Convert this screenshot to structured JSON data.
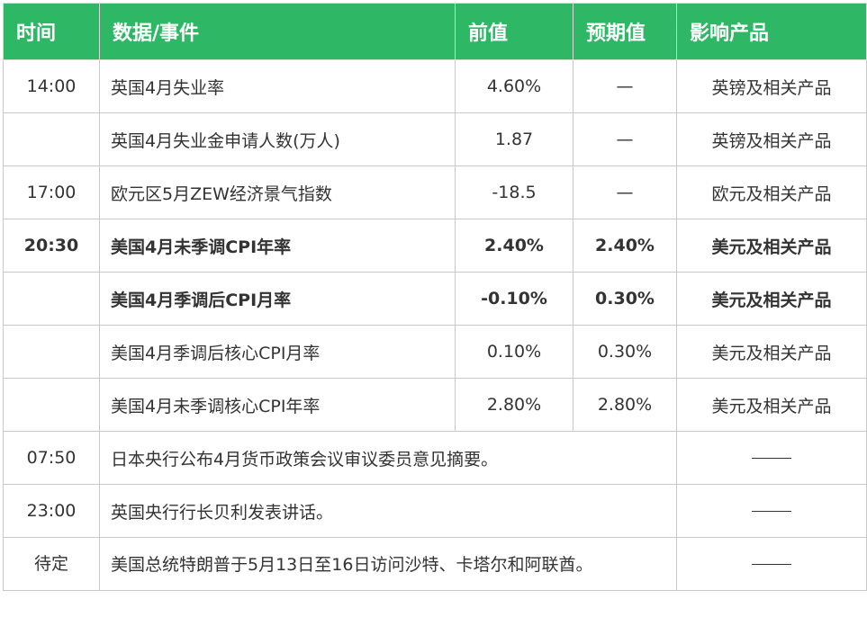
{
  "headers": {
    "time": "时间",
    "event": "数据/事件",
    "previous": "前值",
    "expected": "预期值",
    "products": "影响产品"
  },
  "rows": [
    {
      "time": "14:00",
      "event": "英国4月失业率",
      "previous": "4.60%",
      "expected": "—",
      "products": "英镑及相关产品"
    },
    {
      "time": "",
      "event": "英国4月失业金申请人数(万人)",
      "previous": "1.87",
      "expected": "—",
      "products": "英镑及相关产品"
    },
    {
      "time": "17:00",
      "event": "欧元区5月ZEW经济景气指数",
      "previous": "-18.5",
      "expected": "—",
      "products": "欧元及相关产品"
    },
    {
      "time": "20:30",
      "event": "美国4月未季调CPI年率",
      "previous": "2.40%",
      "expected": "2.40%",
      "products": "美元及相关产品"
    },
    {
      "time": "",
      "event": "美国4月季调后CPI月率",
      "previous": "-0.10%",
      "expected": "0.30%",
      "products": "美元及相关产品"
    },
    {
      "time": "",
      "event": "美国4月季调后核心CPI月率",
      "previous": "0.10%",
      "expected": "0.30%",
      "products": "美元及相关产品"
    },
    {
      "time": "",
      "event": "美国4月未季调核心CPI年率",
      "previous": "2.80%",
      "expected": "2.80%",
      "products": "美元及相关产品"
    }
  ],
  "events": [
    {
      "time": "07:50",
      "event": "日本央行公布4月货币政策会议审议委员意见摘要。"
    },
    {
      "time": "23:00",
      "event": "英国央行行长贝利发表讲话。"
    },
    {
      "time": "待定",
      "event": "美国总统特朗普于5月13日至16日访问沙特、卡塔尔和阿联酋。"
    }
  ],
  "colors": {
    "header_bg": "#2eb865",
    "header_text": "#ffffff",
    "grid": "#c8c8c8",
    "text": "#333333"
  }
}
